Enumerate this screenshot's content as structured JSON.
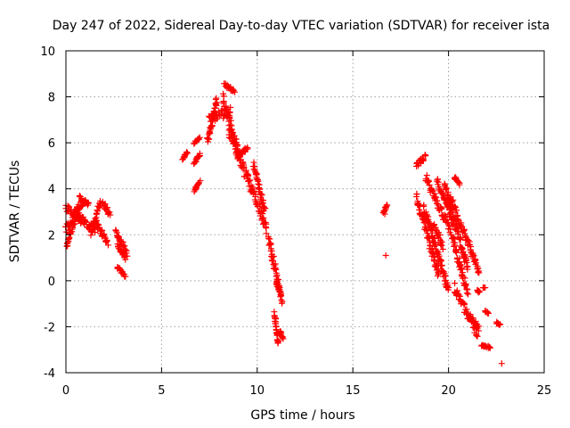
{
  "chart_data": {
    "type": "scatter",
    "title": "Day 247 of 2022, Sidereal Day-to-day VTEC variation (SDTVAR) for receiver ista",
    "xlabel": "GPS time / hours",
    "ylabel": "SDTVAR / TECUs",
    "xlim": [
      0,
      25
    ],
    "ylim": [
      -4,
      10
    ],
    "xticks": [
      0,
      5,
      10,
      15,
      20,
      25
    ],
    "yticks": [
      -4,
      -2,
      0,
      2,
      4,
      6,
      8,
      10
    ],
    "grid": true,
    "marker": "+",
    "color": "#ff0000",
    "series": [
      {
        "name": "SDTVAR",
        "arcs": [
          {
            "start": [
              0.0,
              2.2
            ],
            "end": [
              0.9,
              3.5
            ],
            "spread": 0.4
          },
          {
            "start": [
              0.0,
              3.2
            ],
            "end": [
              0.8,
              2.6
            ],
            "spread": 0.3
          },
          {
            "start": [
              0.05,
              1.6
            ],
            "end": [
              0.6,
              3.0
            ],
            "spread": 0.3
          },
          {
            "start": [
              0.4,
              3.0
            ],
            "end": [
              1.5,
              2.2
            ],
            "spread": 0.3
          },
          {
            "start": [
              0.7,
              3.6
            ],
            "end": [
              1.2,
              3.3
            ],
            "spread": 0.2
          },
          {
            "start": [
              1.3,
              2.0
            ],
            "end": [
              1.8,
              3.4
            ],
            "spread": 0.3
          },
          {
            "start": [
              1.6,
              2.5
            ],
            "end": [
              2.2,
              1.6
            ],
            "spread": 0.3
          },
          {
            "start": [
              1.9,
              3.4
            ],
            "end": [
              2.3,
              2.9
            ],
            "spread": 0.2
          },
          {
            "start": [
              2.6,
              2.1
            ],
            "end": [
              3.2,
              1.2
            ],
            "spread": 0.3
          },
          {
            "start": [
              2.7,
              1.6
            ],
            "end": [
              3.1,
              1.0
            ],
            "spread": 0.2
          },
          {
            "start": [
              2.7,
              0.6
            ],
            "end": [
              3.1,
              0.2
            ],
            "spread": 0.1
          },
          {
            "start": [
              6.1,
              5.3
            ],
            "end": [
              6.35,
              5.6
            ],
            "spread": 0.1
          },
          {
            "start": [
              6.7,
              3.9
            ],
            "end": [
              7.0,
              4.3
            ],
            "spread": 0.1
          },
          {
            "start": [
              6.7,
              5.1
            ],
            "end": [
              7.0,
              5.5
            ],
            "spread": 0.1
          },
          {
            "start": [
              6.7,
              6.0
            ],
            "end": [
              7.0,
              6.2
            ],
            "spread": 0.1
          },
          {
            "start": [
              7.4,
              6.0
            ],
            "end": [
              7.9,
              7.9
            ],
            "spread": 0.4
          },
          {
            "start": [
              7.5,
              7.0
            ],
            "end": [
              8.6,
              7.4
            ],
            "spread": 0.4
          },
          {
            "start": [
              8.3,
              8.5
            ],
            "end": [
              8.8,
              8.3
            ],
            "spread": 0.2
          },
          {
            "start": [
              8.2,
              8.0
            ],
            "end": [
              9.0,
              5.6
            ],
            "spread": 0.5
          },
          {
            "start": [
              8.5,
              6.6
            ],
            "end": [
              9.5,
              4.4
            ],
            "spread": 0.5
          },
          {
            "start": [
              9.0,
              5.4
            ],
            "end": [
              9.5,
              5.8
            ],
            "spread": 0.2
          },
          {
            "start": [
              9.5,
              4.5
            ],
            "end": [
              10.5,
              2.3
            ],
            "spread": 0.5
          },
          {
            "start": [
              9.8,
              5.1
            ],
            "end": [
              10.4,
              3.0
            ],
            "spread": 0.4
          },
          {
            "start": [
              10.6,
              1.8
            ],
            "end": [
              11.3,
              -0.9
            ],
            "spread": 0.4
          },
          {
            "start": [
              11.0,
              0.0
            ],
            "end": [
              11.2,
              -0.5
            ],
            "spread": 0.2
          },
          {
            "start": [
              10.9,
              -1.4
            ],
            "end": [
              11.1,
              -2.8
            ],
            "spread": 0.2
          },
          {
            "start": [
              11.2,
              -2.2
            ],
            "end": [
              11.35,
              -2.5
            ],
            "spread": 0.1
          },
          {
            "start": [
              16.6,
              3.0
            ],
            "end": [
              16.8,
              3.3
            ],
            "spread": 0.1
          },
          {
            "start": [
              16.7,
              2.9
            ],
            "end": [
              16.7,
              2.9
            ],
            "spread": 0.0
          },
          {
            "start": [
              16.7,
              1.1
            ],
            "end": [
              16.7,
              1.1
            ],
            "spread": 0.0
          },
          {
            "start": [
              18.3,
              5.0
            ],
            "end": [
              18.8,
              5.4
            ],
            "spread": 0.2
          },
          {
            "start": [
              18.8,
              4.5
            ],
            "end": [
              20.1,
              2.2
            ],
            "spread": 0.4
          },
          {
            "start": [
              18.3,
              3.7
            ],
            "end": [
              19.5,
              0.2
            ],
            "spread": 0.4
          },
          {
            "start": [
              18.7,
              3.2
            ],
            "end": [
              20.0,
              -0.4
            ],
            "spread": 0.4
          },
          {
            "start": [
              19.2,
              2.5
            ],
            "end": [
              19.7,
              1.5
            ],
            "spread": 0.3
          },
          {
            "start": [
              19.4,
              4.4
            ],
            "end": [
              20.3,
              2.4
            ],
            "spread": 0.3
          },
          {
            "start": [
              19.8,
              4.2
            ],
            "end": [
              21.0,
              0.5
            ],
            "spread": 0.4
          },
          {
            "start": [
              20.1,
              3.6
            ],
            "end": [
              21.6,
              0.4
            ],
            "spread": 0.4
          },
          {
            "start": [
              20.2,
              1.9
            ],
            "end": [
              21.0,
              -0.6
            ],
            "spread": 0.4
          },
          {
            "start": [
              20.3,
              4.5
            ],
            "end": [
              20.6,
              4.2
            ],
            "spread": 0.1
          },
          {
            "start": [
              20.3,
              -0.3
            ],
            "end": [
              21.5,
              -2.3
            ],
            "spread": 0.4
          },
          {
            "start": [
              21.0,
              -1.5
            ],
            "end": [
              21.6,
              -2.1
            ],
            "spread": 0.3
          },
          {
            "start": [
              21.5,
              -0.4
            ],
            "end": [
              21.6,
              -0.5
            ],
            "spread": 0.1
          },
          {
            "start": [
              21.8,
              -0.3
            ],
            "end": [
              21.9,
              -0.3
            ],
            "spread": 0.0
          },
          {
            "start": [
              21.7,
              -2.8
            ],
            "end": [
              22.2,
              -2.9
            ],
            "spread": 0.1
          },
          {
            "start": [
              21.9,
              -1.3
            ],
            "end": [
              22.1,
              -1.4
            ],
            "spread": 0.1
          },
          {
            "start": [
              22.5,
              -1.8
            ],
            "end": [
              22.7,
              -1.9
            ],
            "spread": 0.1
          },
          {
            "start": [
              22.8,
              -3.6
            ],
            "end": [
              22.8,
              -3.6
            ],
            "spread": 0.0
          }
        ]
      }
    ]
  }
}
